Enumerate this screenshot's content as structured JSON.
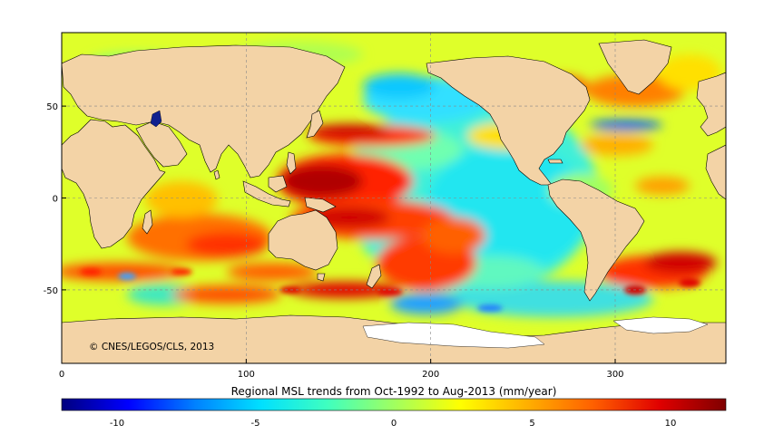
{
  "chart_data": {
    "type": "heatmap",
    "title": "Regional MSL trends from Oct-1992 to Aug-2013 (mm/year)",
    "credit": "© CNES/LEGOS/CLS, 2013",
    "x_ticks": [
      0,
      100,
      200,
      300
    ],
    "y_ticks": [
      50,
      0,
      -50
    ],
    "xlim": [
      0,
      360
    ],
    "ylim": [
      -90,
      90
    ],
    "grid": true,
    "colorbar": {
      "min": -12,
      "max": 12,
      "ticks": [
        -10,
        -5,
        0,
        5,
        10
      ],
      "colors": [
        "#00007f",
        "#0000ff",
        "#0080ff",
        "#00e0ff",
        "#3fffbf",
        "#a0ff60",
        "#ffff00",
        "#ffb000",
        "#ff6000",
        "#e00000",
        "#7f0000"
      ]
    },
    "colors": {
      "land": "#f3d3a6",
      "ice": "#ffffff",
      "frame": "#000000"
    }
  }
}
